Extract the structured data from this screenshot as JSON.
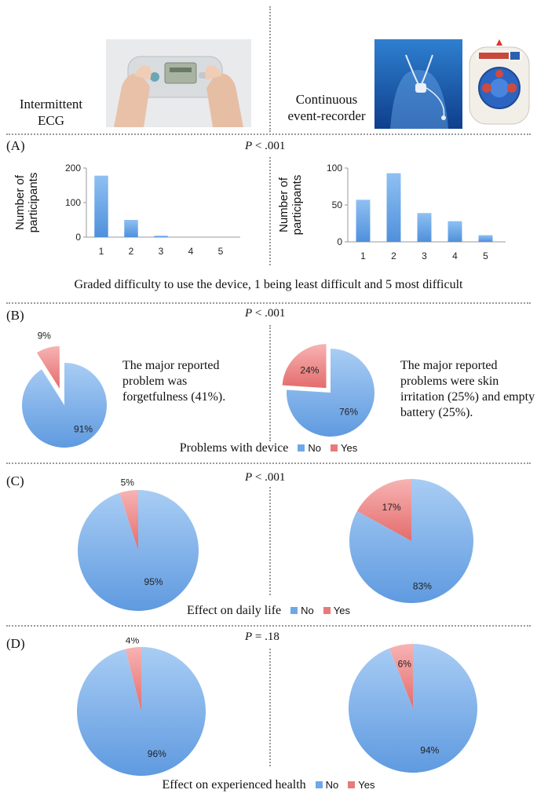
{
  "devices": {
    "left_label": "Intermittent ECG",
    "right_label": "Continuous event-recorder",
    "left_photo": "handheld-ecg-device-photo",
    "right_photo": "chest-worn-event-recorder-photo"
  },
  "colors": {
    "no": "#6fa8e6",
    "yes": "#e97a7a",
    "bar": "#6fa8e6"
  },
  "legend": {
    "no": "No",
    "yes": "Yes"
  },
  "chart_data": [
    {
      "panel": "A",
      "type": "bar",
      "p_value_label": "P",
      "p_value": "< .001",
      "caption": "Graded difficulty to use the device, 1 being least difficult and 5 most difficult",
      "ylabel": "Number of participants",
      "left": {
        "categories": [
          "1",
          "2",
          "3",
          "4",
          "5"
        ],
        "values": [
          178,
          50,
          4,
          0,
          0
        ],
        "ylim": [
          0,
          200
        ],
        "yticks": [
          0,
          100,
          200
        ]
      },
      "right": {
        "categories": [
          "1",
          "2",
          "3",
          "4",
          "5"
        ],
        "values": [
          57,
          93,
          39,
          28,
          9
        ],
        "ylim": [
          0,
          100
        ],
        "yticks": [
          0,
          50,
          100
        ]
      }
    },
    {
      "panel": "B",
      "type": "pie",
      "p_value_label": "P",
      "p_value": "< .001",
      "caption": "Problems with device",
      "left": {
        "series": [
          {
            "name": "No",
            "value": 91,
            "label": "91%"
          },
          {
            "name": "Yes",
            "value": 9,
            "label": "9%"
          }
        ],
        "note": "The major reported problem was forgetfulness (41%)."
      },
      "right": {
        "series": [
          {
            "name": "No",
            "value": 76,
            "label": "76%"
          },
          {
            "name": "Yes",
            "value": 24,
            "label": "24%"
          }
        ],
        "note": "The major reported problems were skin irritation (25%) and empty battery (25%)."
      }
    },
    {
      "panel": "C",
      "type": "pie",
      "p_value_label": "P",
      "p_value": "< .001",
      "caption": "Effect on daily life",
      "left": {
        "series": [
          {
            "name": "No",
            "value": 95,
            "label": "95%"
          },
          {
            "name": "Yes",
            "value": 5,
            "label": "5%"
          }
        ]
      },
      "right": {
        "series": [
          {
            "name": "No",
            "value": 83,
            "label": "83%"
          },
          {
            "name": "Yes",
            "value": 17,
            "label": "17%"
          }
        ]
      }
    },
    {
      "panel": "D",
      "type": "pie",
      "p_value_label": "P",
      "p_value": "= .18",
      "caption": "Effect on experienced health",
      "left": {
        "series": [
          {
            "name": "No",
            "value": 96,
            "label": "96%"
          },
          {
            "name": "Yes",
            "value": 4,
            "label": "4%"
          }
        ]
      },
      "right": {
        "series": [
          {
            "name": "No",
            "value": 94,
            "label": "94%"
          },
          {
            "name": "Yes",
            "value": 6,
            "label": "6%"
          }
        ]
      }
    }
  ]
}
